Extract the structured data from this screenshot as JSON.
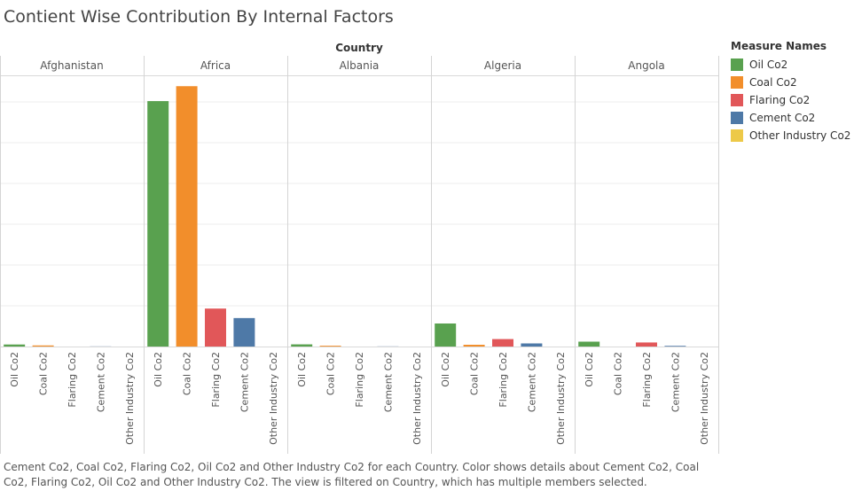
{
  "title": "Contient Wise Contribution By Internal Factors",
  "caption": "Cement Co2, Coal Co2, Flaring Co2, Oil Co2 and Other Industry Co2 for each Country.  Color shows details about Cement Co2, Coal Co2, Flaring Co2, Oil Co2 and Other Industry Co2. The view is filtered on Country, which has multiple members selected.",
  "legend": {
    "title": "Measure Names",
    "items": [
      {
        "label": "Oil Co2",
        "color": "#59a14f"
      },
      {
        "label": "Coal Co2",
        "color": "#f28e2b"
      },
      {
        "label": "Flaring Co2",
        "color": "#e15759"
      },
      {
        "label": "Cement Co2",
        "color": "#4e79a7"
      },
      {
        "label": "Other Industry Co2",
        "color": "#edc948"
      }
    ]
  },
  "chart_data": {
    "type": "bar",
    "column_header": "Country",
    "panels": [
      "Afghanistan",
      "Africa",
      "Albania",
      "Algeria",
      "Angola"
    ],
    "categories": [
      "Oil Co2",
      "Coal Co2",
      "Flaring Co2",
      "Cement Co2",
      "Other Industry Co2"
    ],
    "colors": [
      "#59a14f",
      "#f28e2b",
      "#e15759",
      "#4e79a7",
      "#edc948"
    ],
    "values": [
      [
        1.5,
        0.8,
        0,
        0.1,
        0
      ],
      [
        181,
        192,
        28,
        21,
        0
      ],
      [
        1.6,
        0.6,
        0,
        0.1,
        0
      ],
      [
        17,
        1.3,
        5.5,
        2.3,
        0
      ],
      [
        3.6,
        0,
        3.0,
        0.5,
        0
      ]
    ],
    "ylim": [
      0,
      200
    ],
    "y_axis_visible": false,
    "grid": true
  }
}
